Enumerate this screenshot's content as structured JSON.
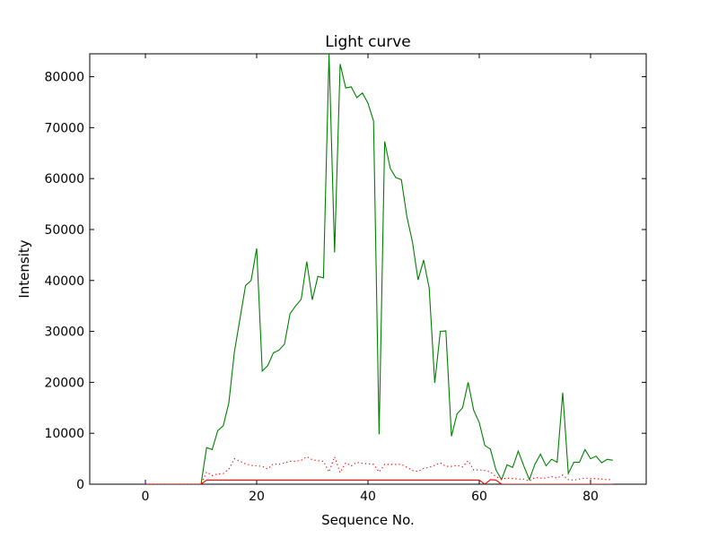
{
  "chart_data": {
    "type": "line",
    "title": "Light curve",
    "xlabel": "Sequence No.",
    "ylabel": "Intensity",
    "xlim": [
      -10,
      90
    ],
    "ylim": [
      0,
      84500
    ],
    "xticks": [
      0,
      20,
      40,
      60,
      80
    ],
    "yticks": [
      0,
      10000,
      20000,
      30000,
      40000,
      50000,
      60000,
      70000,
      80000
    ],
    "grid": false,
    "series": [
      {
        "color": "#008000",
        "style": "solid",
        "x": [
          0,
          1,
          2,
          3,
          4,
          5,
          6,
          7,
          8,
          9,
          10,
          11,
          12,
          13,
          14,
          15,
          16,
          17,
          18,
          19,
          20,
          21,
          22,
          23,
          24,
          25,
          26,
          27,
          28,
          29,
          30,
          31,
          32,
          33,
          34,
          35,
          36,
          37,
          38,
          39,
          40,
          41,
          42,
          43,
          44,
          45,
          46,
          47,
          48,
          49,
          50,
          51,
          52,
          53,
          54,
          55,
          56,
          57,
          58,
          59,
          60,
          61,
          62,
          63,
          64,
          65,
          66,
          67,
          68,
          69,
          70,
          71,
          72,
          73,
          74,
          75,
          76,
          77,
          78,
          79,
          80,
          81,
          82,
          83,
          84
        ],
        "y": [
          0,
          0,
          0,
          0,
          0,
          0,
          0,
          0,
          0,
          0,
          0,
          7200,
          6800,
          10500,
          11500,
          16000,
          26000,
          32500,
          39000,
          40000,
          46300,
          22200,
          23300,
          25800,
          26300,
          27500,
          33500,
          35000,
          36300,
          43700,
          36200,
          40800,
          40500,
          84500,
          45500,
          82500,
          77800,
          78000,
          75900,
          76800,
          74800,
          71300,
          9800,
          67300,
          62000,
          60200,
          59800,
          52500,
          47500,
          40100,
          44000,
          38500,
          19900,
          30000,
          30100,
          9400,
          13800,
          15000,
          20000,
          14500,
          12100,
          7600,
          6900,
          2800,
          900,
          3800,
          3300,
          6500,
          3600,
          900,
          3900,
          5900,
          3600,
          4900,
          4300,
          18000,
          2100,
          4300,
          4300,
          6800,
          5000,
          5500,
          4200,
          4900,
          4700
        ]
      },
      {
        "color": "#ff0000",
        "style": "dotted",
        "x": [
          0,
          1,
          2,
          3,
          4,
          5,
          6,
          7,
          8,
          9,
          10,
          11,
          12,
          13,
          14,
          15,
          16,
          17,
          18,
          19,
          20,
          21,
          22,
          23,
          24,
          25,
          26,
          27,
          28,
          29,
          30,
          31,
          32,
          33,
          34,
          35,
          36,
          37,
          38,
          39,
          40,
          41,
          42,
          43,
          44,
          45,
          46,
          47,
          48,
          49,
          50,
          51,
          52,
          53,
          54,
          55,
          56,
          57,
          58,
          59,
          60,
          61,
          62,
          63,
          64,
          65,
          66,
          67,
          68,
          69,
          70,
          71,
          72,
          73,
          74,
          75,
          76,
          77,
          78,
          79,
          80,
          81,
          82,
          83,
          84
        ],
        "y": [
          0,
          0,
          0,
          0,
          0,
          0,
          0,
          0,
          0,
          0,
          0,
          2400,
          1700,
          2000,
          2100,
          3000,
          5000,
          4500,
          4000,
          3700,
          3600,
          3500,
          3000,
          4000,
          3900,
          4200,
          4500,
          4500,
          4700,
          5400,
          4800,
          4600,
          4500,
          2400,
          5400,
          2300,
          4200,
          3600,
          4300,
          4100,
          4000,
          3900,
          2400,
          3900,
          3900,
          3900,
          3900,
          3300,
          2700,
          2500,
          3100,
          3300,
          3700,
          4200,
          3500,
          3500,
          3700,
          3400,
          4600,
          2800,
          2800,
          2700,
          2400,
          1500,
          1000,
          1200,
          1100,
          1000,
          1000,
          600,
          1300,
          1200,
          1200,
          1500,
          1200,
          1800,
          900,
          800,
          1000,
          1200,
          1100,
          1100,
          1000,
          900,
          900
        ]
      },
      {
        "color": "#ff0000",
        "style": "solid",
        "x": [
          0,
          1,
          2,
          3,
          4,
          5,
          6,
          7,
          8,
          9,
          10,
          11,
          12,
          13,
          14,
          15,
          16,
          17,
          18,
          19,
          20,
          21,
          22,
          23,
          24,
          25,
          26,
          27,
          28,
          29,
          30,
          31,
          32,
          33,
          34,
          35,
          36,
          37,
          38,
          39,
          40,
          41,
          42,
          43,
          44,
          45,
          46,
          47,
          48,
          49,
          50,
          51,
          52,
          53,
          54,
          55,
          56,
          57,
          58,
          59,
          60,
          61,
          62,
          63,
          64,
          65,
          66,
          67,
          68,
          69,
          70,
          71,
          72,
          73,
          74,
          75,
          76,
          77,
          78,
          79,
          80,
          81,
          82,
          83,
          84
        ],
        "y": [
          0,
          0,
          0,
          0,
          0,
          0,
          0,
          0,
          0,
          0,
          0,
          800,
          800,
          800,
          800,
          800,
          800,
          800,
          800,
          800,
          800,
          800,
          800,
          800,
          800,
          800,
          800,
          800,
          800,
          800,
          800,
          800,
          800,
          800,
          800,
          800,
          800,
          800,
          800,
          800,
          800,
          800,
          800,
          800,
          800,
          800,
          800,
          800,
          800,
          800,
          800,
          800,
          800,
          800,
          800,
          800,
          800,
          800,
          800,
          800,
          800,
          0,
          900,
          800,
          0,
          0,
          0,
          0,
          0,
          0,
          0,
          0,
          0,
          0,
          0,
          0,
          0,
          0,
          0,
          0,
          0,
          0,
          0,
          0,
          0
        ]
      },
      {
        "color": "#0000ff",
        "style": "solid",
        "x": [
          0,
          0
        ],
        "y": [
          0,
          400
        ]
      }
    ]
  }
}
